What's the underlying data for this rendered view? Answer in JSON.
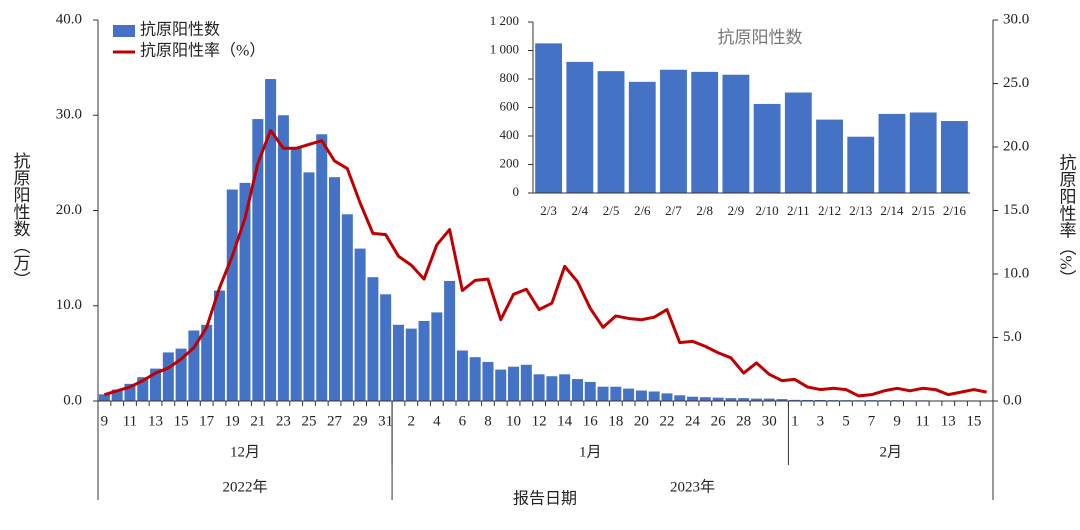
{
  "chart_data": [
    {
      "type": "bar",
      "x_label": "报告日期",
      "y_label": "抗原阳性数（万）",
      "y2_label": "抗原阳性率（%）",
      "categories": [
        "9",
        null,
        "11",
        null,
        "13",
        null,
        "15",
        null,
        "17",
        null,
        "19",
        null,
        "21",
        null,
        "23",
        null,
        "25",
        null,
        "27",
        null,
        "29",
        null,
        "31",
        null,
        "2",
        null,
        "4",
        null,
        "6",
        null,
        "8",
        null,
        "10",
        null,
        "12",
        null,
        "14",
        null,
        "16",
        null,
        "18",
        null,
        "20",
        null,
        "22",
        null,
        "24",
        null,
        "26",
        null,
        "28",
        null,
        "30",
        null,
        "1",
        null,
        "3",
        null,
        "5",
        null,
        "7",
        null,
        "9",
        null,
        "11",
        null,
        "13",
        null,
        "15",
        null
      ],
      "months": [
        "12月",
        "1月",
        "2月"
      ],
      "years": [
        {
          "label": "2022年",
          "months": [
            "12月"
          ]
        },
        {
          "label": "2023年",
          "months": [
            "1月",
            "2月"
          ]
        }
      ],
      "series": [
        {
          "name": "抗原阳性数",
          "color": "#4472c4",
          "values": [
            0.7,
            1.2,
            1.8,
            2.5,
            3.4,
            5.1,
            5.5,
            7.4,
            8.0,
            11.6,
            22.2,
            22.9,
            29.6,
            33.8,
            30.0,
            26.6,
            24.0,
            28.0,
            23.5,
            19.6,
            16.0,
            13.0,
            11.2,
            8.0,
            7.6,
            8.4,
            9.3,
            12.6,
            5.3,
            4.6,
            4.1,
            3.3,
            3.6,
            3.8,
            2.8,
            2.6,
            2.8,
            2.3,
            2.0,
            1.5,
            1.5,
            1.3,
            1.1,
            1.0,
            0.8,
            0.6,
            0.45,
            0.4,
            0.35,
            0.3,
            0.3,
            0.25,
            0.25,
            0.2,
            0.12,
            0.11,
            0.105,
            0.092,
            0.086,
            0.078,
            0.087,
            0.085,
            0.083,
            0.063,
            0.071,
            0.052,
            0.04,
            0.056,
            0.057,
            0.051
          ]
        },
        {
          "name": "抗原阳性率（%）",
          "type": "line",
          "axis": "y2",
          "color": "#c00000",
          "values": [
            0.5,
            0.8,
            1.1,
            1.6,
            2.2,
            2.6,
            3.3,
            4.2,
            5.8,
            8.9,
            11.4,
            14.4,
            18.7,
            21.3,
            19.9,
            19.9,
            20.2,
            20.5,
            18.9,
            18.3,
            15.6,
            13.2,
            13.1,
            11.4,
            10.7,
            9.6,
            12.3,
            13.5,
            8.7,
            9.5,
            9.6,
            6.4,
            8.4,
            8.8,
            7.2,
            7.7,
            10.6,
            9.4,
            7.3,
            5.8,
            6.7,
            6.5,
            6.4,
            6.6,
            7.2,
            4.6,
            4.7,
            4.3,
            3.8,
            3.4,
            2.2,
            3.0,
            2.1,
            1.6,
            1.7,
            1.1,
            0.9,
            1.0,
            0.9,
            0.4,
            0.5,
            0.8,
            1.0,
            0.8,
            1.0,
            0.9,
            0.5,
            0.7,
            0.9,
            0.7
          ]
        }
      ],
      "ylim": [
        0,
        40
      ],
      "yticks": [
        {
          "value": 0,
          "label": "0.0"
        },
        {
          "value": 10,
          "label": "10.0"
        },
        {
          "value": 20,
          "label": "20.0"
        },
        {
          "value": 30,
          "label": "30.0"
        },
        {
          "value": 40,
          "label": "40.0"
        }
      ],
      "y2lim": [
        0,
        30
      ],
      "y2ticks": [
        {
          "value": 0,
          "label": "0.0"
        },
        {
          "value": 5,
          "label": "5.0"
        },
        {
          "value": 10,
          "label": "10.0"
        },
        {
          "value": 15,
          "label": "15.0"
        },
        {
          "value": 20,
          "label": "20.0"
        },
        {
          "value": 25,
          "label": "25.0"
        },
        {
          "value": 30,
          "label": "30.0"
        }
      ],
      "legend": "upper left"
    },
    {
      "type": "bar",
      "title": "抗原阳性数",
      "color": "#4472c4",
      "categories": [
        "2/3",
        "2/4",
        "2/5",
        "2/6",
        "2/7",
        "2/8",
        "2/9",
        "2/10",
        "2/11",
        "2/12",
        "2/13",
        "2/14",
        "2/15",
        "2/16"
      ],
      "values": [
        1050,
        920,
        855,
        780,
        865,
        850,
        830,
        625,
        705,
        515,
        395,
        555,
        565,
        505
      ],
      "ylim": [
        0,
        1200
      ],
      "yticks": [
        0,
        200,
        400,
        600,
        800,
        {
          "value": 1000,
          "label": "1 000"
        },
        {
          "value": 1200,
          "label": "1 200"
        }
      ]
    }
  ]
}
